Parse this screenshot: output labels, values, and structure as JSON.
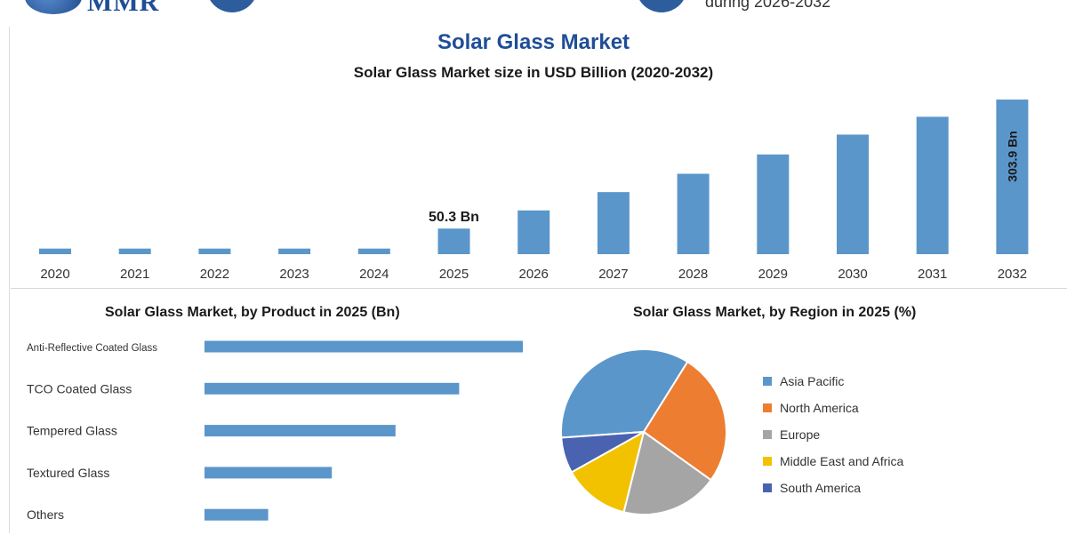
{
  "header": {
    "logo_text": "MMR",
    "note": "during 2026-2032"
  },
  "title": "Solar Glass Market",
  "chart_data": [
    {
      "type": "bar",
      "title": "Solar Glass Market size in USD Billion (2020-2032)",
      "categories": [
        "2020",
        "2021",
        "2022",
        "2023",
        "2024",
        "2025",
        "2026",
        "2027",
        "2028",
        "2029",
        "2030",
        "2031",
        "2032"
      ],
      "values": [
        11,
        11,
        11,
        11,
        11,
        50.3,
        86,
        122,
        158,
        196,
        235,
        270,
        303.9
      ],
      "data_labels": {
        "2025": "50.3 Bn",
        "2032": "303.9 Bn"
      },
      "xlabel": "",
      "ylabel": "",
      "ylim": [
        0,
        320
      ],
      "color": "#5b96cb",
      "grid": false
    },
    {
      "type": "bar",
      "orientation": "horizontal",
      "title": "Solar Glass Market, by Product in 2025 (Bn)",
      "categories": [
        "Anti-Reflective Coated Glass",
        "TCO Coated Glass",
        "Tempered Glass",
        "Textured Glass",
        "Others"
      ],
      "values": [
        20,
        16,
        12,
        8,
        4
      ],
      "xlim": [
        0,
        20
      ],
      "color": "#5b96cb",
      "grid": false
    },
    {
      "type": "pie",
      "title": "Solar Glass Market, by Region in 2025 (%)",
      "labels": [
        "Asia Pacific",
        "North America",
        "Europe",
        "Middle East and Africa",
        "South America"
      ],
      "values": [
        35,
        26,
        19,
        13,
        7
      ],
      "colors": [
        "#5b96cb",
        "#ed7d31",
        "#a5a5a5",
        "#f2c200",
        "#4a63b0"
      ],
      "legend_position": "right"
    }
  ]
}
